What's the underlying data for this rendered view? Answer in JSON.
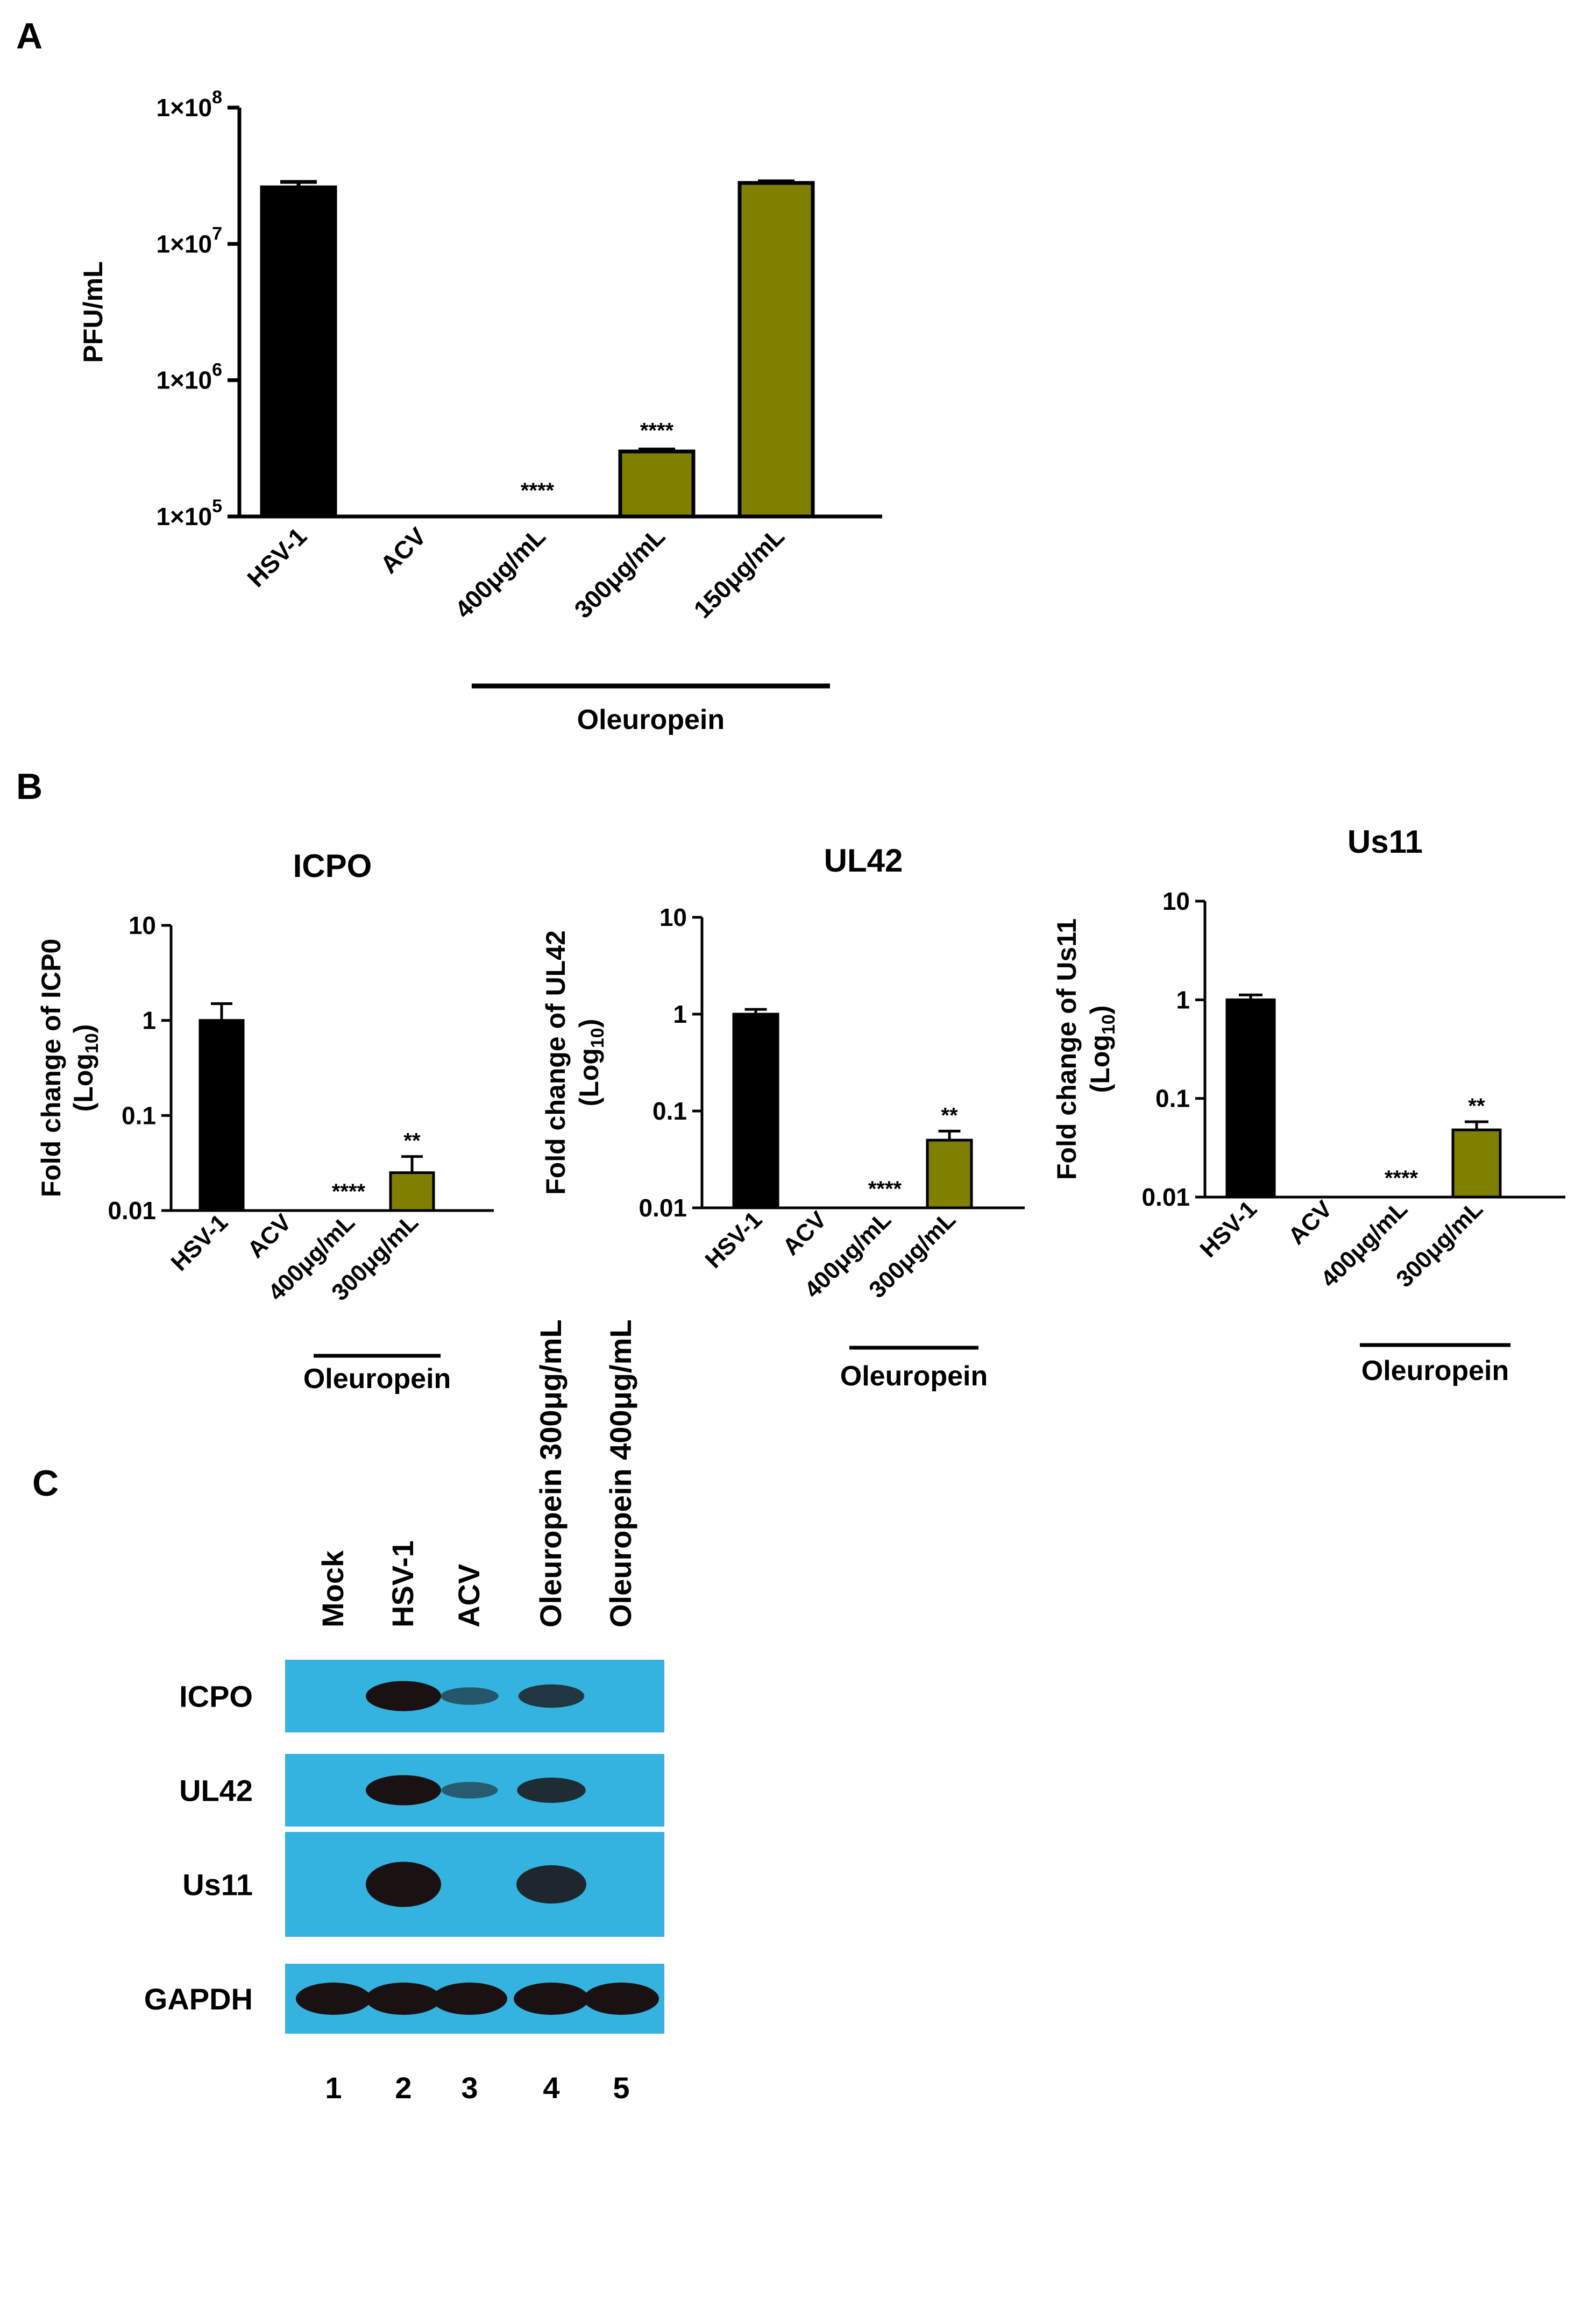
{
  "panels": {
    "a": "A",
    "b": "B",
    "c": "C"
  },
  "colors": {
    "control": "#000000",
    "treated": "#808000",
    "blot_bg": "#35b3e0",
    "band": "#1a1212"
  },
  "chart_data": [
    {
      "id": "A",
      "type": "bar",
      "title": "",
      "ylabel": "PFU/mL",
      "yscale": "log",
      "ylim": [
        100000,
        100000000
      ],
      "yticks": [
        {
          "value": 100000,
          "mant": "1×10",
          "exp": "5"
        },
        {
          "value": 1000000,
          "mant": "1×10",
          "exp": "6"
        },
        {
          "value": 10000000,
          "mant": "1×10",
          "exp": "7"
        },
        {
          "value": 100000000,
          "mant": "1×10",
          "exp": "8"
        }
      ],
      "categories": [
        "HSV-1",
        "ACV",
        "400μg/mL",
        "300μg/mL",
        "150μg/mL"
      ],
      "values": [
        26000000,
        null,
        null,
        300000,
        28000000
      ],
      "errors": [
        2500000,
        null,
        null,
        10000,
        800000
      ],
      "bar_colors": [
        "control",
        null,
        null,
        "treated",
        "treated"
      ],
      "annotations": [
        {
          "category": 2,
          "text": "****"
        },
        {
          "category": 3,
          "text": "****"
        }
      ],
      "group": {
        "label": "Oleuropein",
        "from": 2,
        "to": 4
      }
    },
    {
      "id": "B-ICP0",
      "type": "bar",
      "title": "ICPO",
      "ylabel": "Fold change of ICP0",
      "ylabel2": "(Log",
      "ylabel2_sub": "10",
      "ylabel2_end": ")",
      "yscale": "log",
      "ylim": [
        0.01,
        10
      ],
      "yticks": [
        {
          "value": 0.01,
          "label": "0.01"
        },
        {
          "value": 0.1,
          "label": "0.1"
        },
        {
          "value": 1,
          "label": "1"
        },
        {
          "value": 10,
          "label": "10"
        }
      ],
      "categories": [
        "HSV-1",
        "ACV",
        "400μg/mL",
        "300μg/mL"
      ],
      "values": [
        1.0,
        null,
        null,
        0.025
      ],
      "errors": [
        0.5,
        null,
        null,
        0.012
      ],
      "bar_colors": [
        "control",
        null,
        null,
        "treated"
      ],
      "annotations": [
        {
          "category": 2,
          "text": "****"
        },
        {
          "category": 3,
          "text": "**"
        }
      ],
      "group": {
        "label": "Oleuropein",
        "from": 2,
        "to": 3
      }
    },
    {
      "id": "B-UL42",
      "type": "bar",
      "title": "UL42",
      "ylabel": "Fold change of UL42",
      "ylabel2": "(Log",
      "ylabel2_sub": "10",
      "ylabel2_end": ")",
      "yscale": "log",
      "ylim": [
        0.01,
        10
      ],
      "yticks": [
        {
          "value": 0.01,
          "label": "0.01"
        },
        {
          "value": 0.1,
          "label": "0.1"
        },
        {
          "value": 1,
          "label": "1"
        },
        {
          "value": 10,
          "label": "10"
        }
      ],
      "categories": [
        "HSV-1",
        "ACV",
        "400μg/mL",
        "300μg/mL"
      ],
      "values": [
        1.0,
        null,
        null,
        0.05
      ],
      "errors": [
        0.12,
        null,
        null,
        0.012
      ],
      "bar_colors": [
        "control",
        null,
        null,
        "treated"
      ],
      "annotations": [
        {
          "category": 2,
          "text": "****"
        },
        {
          "category": 3,
          "text": "**"
        }
      ],
      "group": {
        "label": "Oleuropein",
        "from": 2,
        "to": 3
      }
    },
    {
      "id": "B-Us11",
      "type": "bar",
      "title": "Us11",
      "ylabel": "Fold change of Us11",
      "ylabel2": "(Log",
      "ylabel2_sub": "10",
      "ylabel2_end": ")",
      "yscale": "log",
      "ylim": [
        0.01,
        10
      ],
      "yticks": [
        {
          "value": 0.01,
          "label": "0.01"
        },
        {
          "value": 0.1,
          "label": "0.1"
        },
        {
          "value": 1,
          "label": "1"
        },
        {
          "value": 10,
          "label": "10"
        }
      ],
      "categories": [
        "HSV-1",
        "ACV",
        "400μg/mL",
        "300μg/mL"
      ],
      "values": [
        1.0,
        null,
        null,
        0.048
      ],
      "errors": [
        0.12,
        null,
        null,
        0.01
      ],
      "bar_colors": [
        "control",
        null,
        null,
        "treated"
      ],
      "annotations": [
        {
          "category": 2,
          "text": "****"
        },
        {
          "category": 3,
          "text": "**"
        }
      ],
      "group": {
        "label": "Oleuropein",
        "from": 2,
        "to": 3
      }
    }
  ],
  "western_blot": {
    "lane_labels": [
      "Mock",
      "HSV-1",
      "ACV",
      "Oleuropein 300μg/mL",
      "Oleuropein 400μg/mL"
    ],
    "lane_numbers": [
      "1",
      "2",
      "3",
      "4",
      "5"
    ],
    "rows": [
      {
        "label": "ICPO",
        "intensity": [
          0,
          1.0,
          0.35,
          0.65,
          0
        ]
      },
      {
        "label": "UL42",
        "intensity": [
          0,
          1.0,
          0.3,
          0.75,
          0
        ]
      },
      {
        "label": "Us11",
        "intensity": [
          0,
          1.0,
          0,
          0.8,
          0
        ]
      },
      {
        "label": "GAPDH",
        "intensity": [
          1.0,
          1.0,
          1.0,
          1.0,
          1.0
        ]
      }
    ]
  }
}
